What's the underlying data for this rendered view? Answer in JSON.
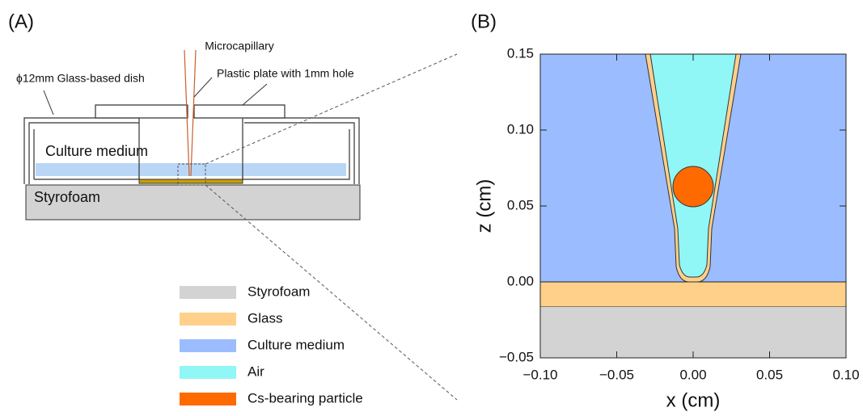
{
  "panel_a": {
    "label": "(A)",
    "microcapillary": "Microcapillary",
    "dish": "ϕ12mm Glass-based dish",
    "plate": "Plastic plate with 1mm hole",
    "medium": "Culture medium",
    "styrofoam": "Styrofoam"
  },
  "legend": [
    {
      "name": "Styrofoam",
      "color": "#d3d3d3"
    },
    {
      "name": "Glass",
      "color": "#ffd08a"
    },
    {
      "name": "Culture medium",
      "color": "#9bbcff"
    },
    {
      "name": "Air",
      "color": "#90f6f6"
    },
    {
      "name": "Cs-bearing particle",
      "color": "#ff6a00"
    }
  ],
  "panel_b": {
    "label": "(B)",
    "xlabel": "x (cm)",
    "ylabel": "z (cm)",
    "xlim": [
      -0.1,
      0.1
    ],
    "ylim": [
      -0.05,
      0.15
    ],
    "xticks": [
      {
        "value": -0.1,
        "label": "−0.10"
      },
      {
        "value": -0.05,
        "label": "−0.05"
      },
      {
        "value": 0,
        "label": "0.00"
      },
      {
        "value": 0.05,
        "label": "0.05"
      },
      {
        "value": 0.1,
        "label": "0.10"
      }
    ],
    "yticks": [
      {
        "value": -0.05,
        "label": "−0.05"
      },
      {
        "value": 0,
        "label": "0.00"
      },
      0.05,
      {
        "value": 0.1,
        "label": "0.10"
      },
      0.15
    ]
  }
}
